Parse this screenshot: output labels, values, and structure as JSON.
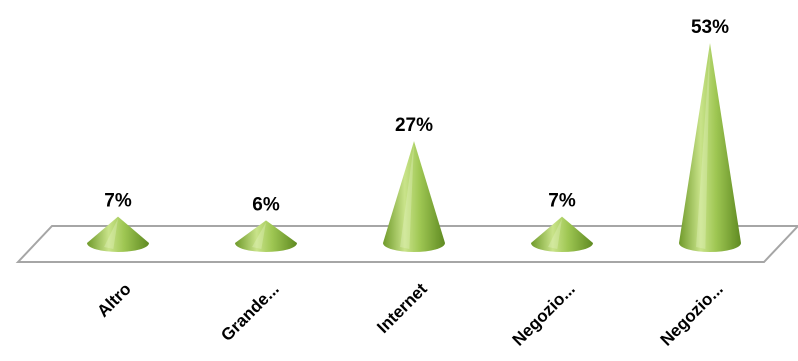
{
  "chart_data": {
    "type": "bar",
    "shape": "cone",
    "categories": [
      "Altro",
      "Grande...",
      "Internet",
      "Negozio...",
      "Negozio..."
    ],
    "values": [
      7,
      6,
      27,
      7,
      53
    ],
    "data_labels": [
      "7%",
      "6%",
      "27%",
      "7%",
      "53%"
    ],
    "title": "",
    "xlabel": "",
    "ylabel": "",
    "ylim": [
      0,
      53
    ],
    "grid": false,
    "legend": "none",
    "colors": {
      "cone_light": "#c9e38a",
      "cone_mid": "#8fbb3f",
      "cone_dark": "#5f8a22",
      "floor_stroke": "#a6a6a6"
    }
  }
}
